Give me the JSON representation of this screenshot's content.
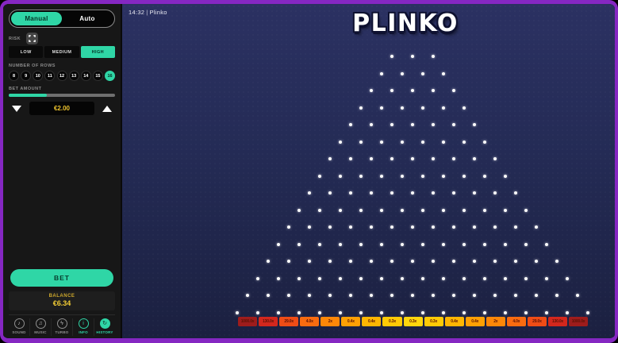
{
  "window": {
    "frame_color": "#8527c2"
  },
  "header": {
    "clock": "14:32",
    "separator": "|",
    "game_name": "Plinko",
    "logo": "PLINKO"
  },
  "sidebar": {
    "mode": {
      "manual": "Manual",
      "auto": "Auto",
      "selected": "Manual"
    },
    "risk": {
      "label": "RISK",
      "options": [
        "LOW",
        "MEDIUM",
        "HIGH"
      ],
      "selected": "HIGH"
    },
    "rows": {
      "label": "NUMBER OF ROWS",
      "options": [
        "8",
        "9",
        "10",
        "11",
        "12",
        "13",
        "14",
        "15",
        "16"
      ],
      "selected": "16"
    },
    "bet_amount": {
      "label": "BET AMOUNT",
      "value": "€2.00",
      "progress_percent": 36
    },
    "bet_button_label": "BET",
    "balance": {
      "label": "BALANCE",
      "value": "€6.34"
    },
    "nav_items": [
      {
        "name": "sound",
        "label": "SOUND",
        "icon": "speaker-icon",
        "active": false
      },
      {
        "name": "music",
        "label": "MUSIC",
        "icon": "music-note-icon",
        "active": false
      },
      {
        "name": "turbo",
        "label": "TURBO",
        "icon": "lightning-icon",
        "active": false
      },
      {
        "name": "info",
        "label": "INFO",
        "icon": "info-icon",
        "active": true
      },
      {
        "name": "history",
        "label": "HISTORY",
        "icon": "history-icon",
        "active": true
      }
    ]
  },
  "icon_glyphs": {
    "speaker-icon": "♪",
    "music-note-icon": "♫",
    "lightning-icon": "ϟ",
    "info-icon": "i",
    "history-icon": "↻"
  },
  "board": {
    "rows": 16,
    "top_pegs": 3,
    "peg_color": "#ffffff"
  },
  "multipliers": {
    "labels": [
      "1000.0x",
      "130.0x",
      "29.0x",
      "4.0x",
      "2x",
      "0.4x",
      "0.4x",
      "0.3x",
      "0.3x",
      "0.3x",
      "0.4x",
      "0.4x",
      "2x",
      "4.0x",
      "29.0x",
      "130.0x",
      "1000.0x"
    ],
    "colors": [
      "#9e1c1c",
      "#d3271d",
      "#ef4c16",
      "#f96b10",
      "#fd8708",
      "#ffa004",
      "#ffb602",
      "#ffca06",
      "#ffd60d",
      "#ffca06",
      "#ffb602",
      "#ffa004",
      "#fd8708",
      "#f96b10",
      "#ef4c16",
      "#d3271d",
      "#9e1c1c"
    ],
    "text_color": "#5a1206"
  },
  "colors": {
    "accent": "#2fd6a6",
    "accent_text": "#053326",
    "gold": "#f3cd35"
  }
}
